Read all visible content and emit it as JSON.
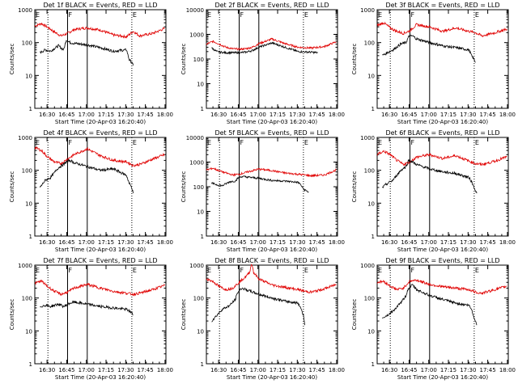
{
  "chart_data": [
    {
      "type": "line",
      "title": "Det 1f BLACK = Events, RED = LLD",
      "xlabel": "Start Time (20-Apr-03 16:20:40)",
      "ylabel": "Counts/sec",
      "yscale": "log",
      "ylim": [
        1,
        1000
      ],
      "yticks": [
        "1",
        "10",
        "100",
        "1000"
      ],
      "xticks": [
        "16:30",
        "16:45",
        "17:00",
        "17:15",
        "17:30",
        "17:45",
        "18:00"
      ],
      "xlim_min": [
        0,
        100
      ],
      "dotted_min": [
        10,
        74
      ],
      "solid_min": [
        25,
        40
      ],
      "markers": [
        {
          "label": "E",
          "min": 0
        },
        {
          "label": "F",
          "min": 25
        },
        {
          "label": "E",
          "min": 74
        }
      ],
      "series": [
        {
          "color": "#e00000",
          "x": [
            0,
            5,
            10,
            15,
            20,
            25,
            30,
            40,
            50,
            60,
            70,
            75,
            80,
            90,
            99
          ],
          "y": [
            320,
            380,
            290,
            210,
            160,
            190,
            250,
            280,
            240,
            170,
            150,
            220,
            160,
            190,
            270
          ]
        },
        {
          "color": "#000000",
          "x": [
            4,
            8,
            12,
            18,
            22,
            24,
            27,
            30,
            40,
            50,
            60,
            70,
            72,
            74,
            75
          ],
          "y": [
            50,
            60,
            55,
            80,
            60,
            120,
            100,
            95,
            85,
            70,
            55,
            60,
            30,
            25,
            20
          ]
        }
      ]
    },
    {
      "type": "line",
      "title": "Det 2f BLACK = Events, RED = LLD",
      "xlabel": "Start Time (20-Apr-03 16:20:40)",
      "ylabel": "Counts/sec",
      "yscale": "log",
      "ylim": [
        1,
        10000
      ],
      "yticks": [
        "1",
        "10",
        "100",
        "1000",
        "10000"
      ],
      "xticks": [
        "16:30",
        "16:45",
        "17:00",
        "17:15",
        "17:30",
        "17:45",
        "18:00"
      ],
      "xlim_min": [
        0,
        100
      ],
      "dotted_min": [
        10,
        74
      ],
      "solid_min": [
        25,
        40
      ],
      "markers": [
        {
          "label": "E",
          "min": 0
        },
        {
          "label": "F",
          "min": 25
        },
        {
          "label": "E",
          "min": 74
        }
      ],
      "series": [
        {
          "color": "#e00000",
          "x": [
            0,
            5,
            10,
            15,
            20,
            25,
            30,
            35,
            40,
            50,
            60,
            70,
            80,
            90,
            99
          ],
          "y": [
            400,
            520,
            400,
            300,
            260,
            250,
            260,
            300,
            420,
            650,
            420,
            300,
            280,
            320,
            500
          ]
        },
        {
          "color": "#000000",
          "x": [
            4,
            8,
            10,
            15,
            20,
            25,
            30,
            35,
            40,
            50,
            60,
            70,
            80,
            85
          ],
          "y": [
            280,
            200,
            190,
            180,
            180,
            180,
            190,
            220,
            300,
            450,
            300,
            200,
            190,
            180
          ]
        }
      ]
    },
    {
      "type": "line",
      "title": "Det 3f BLACK = Events, RED = LLD",
      "xlabel": "Start Time (20-Apr-03 16:20:40)",
      "ylabel": "Counts/sec",
      "yscale": "log",
      "ylim": [
        1,
        1000
      ],
      "yticks": [
        "1",
        "10",
        "100",
        "1000"
      ],
      "xticks": [
        "16:30",
        "16:45",
        "17:00",
        "17:15",
        "17:30",
        "17:45",
        "18:00"
      ],
      "xlim_min": [
        0,
        100
      ],
      "dotted_min": [
        10,
        74
      ],
      "solid_min": [
        25,
        40
      ],
      "markers": [
        {
          "label": "E",
          "min": 0
        },
        {
          "label": "F",
          "min": 25
        },
        {
          "label": "E",
          "min": 74
        }
      ],
      "series": [
        {
          "color": "#e00000",
          "x": [
            0,
            5,
            10,
            15,
            20,
            25,
            30,
            40,
            50,
            60,
            70,
            75,
            80,
            90,
            99
          ],
          "y": [
            330,
            400,
            280,
            220,
            190,
            230,
            350,
            300,
            220,
            280,
            220,
            200,
            160,
            200,
            260
          ]
        },
        {
          "color": "#000000",
          "x": [
            4,
            8,
            12,
            18,
            22,
            24,
            27,
            30,
            40,
            50,
            60,
            70,
            72,
            74,
            75
          ],
          "y": [
            40,
            50,
            60,
            90,
            100,
            150,
            160,
            130,
            100,
            80,
            70,
            60,
            40,
            30,
            25
          ]
        }
      ]
    },
    {
      "type": "line",
      "title": "Det 4f BLACK = Events, RED = LLD",
      "xlabel": "Start Time (20-Apr-03 16:20:40)",
      "ylabel": "Counts/sec",
      "yscale": "log",
      "ylim": [
        1,
        1000
      ],
      "yticks": [
        "1",
        "10",
        "100",
        "1000"
      ],
      "xticks": [
        "16:30",
        "16:45",
        "17:00",
        "17:15",
        "17:30",
        "17:45",
        "18:00"
      ],
      "xlim_min": [
        0,
        100
      ],
      "dotted_min": [
        10,
        74
      ],
      "solid_min": [
        25,
        40
      ],
      "markers": [
        {
          "label": "E",
          "min": 0
        },
        {
          "label": "F",
          "min": 25
        },
        {
          "label": "E",
          "min": 74
        }
      ],
      "series": [
        {
          "color": "#e00000",
          "x": [
            0,
            5,
            10,
            15,
            20,
            25,
            30,
            40,
            50,
            60,
            70,
            75,
            80,
            90,
            99
          ],
          "y": [
            500,
            400,
            250,
            180,
            160,
            220,
            300,
            450,
            280,
            200,
            180,
            140,
            150,
            220,
            300
          ]
        },
        {
          "color": "#000000",
          "x": [
            4,
            8,
            12,
            18,
            22,
            24,
            27,
            30,
            40,
            50,
            60,
            70,
            72,
            74,
            75
          ],
          "y": [
            30,
            50,
            60,
            120,
            150,
            180,
            200,
            170,
            130,
            100,
            110,
            70,
            40,
            30,
            20
          ]
        }
      ]
    },
    {
      "type": "line",
      "title": "Det 5f BLACK = Events, RED = LLD",
      "xlabel": "Start Time (20-Apr-03 16:20:40)",
      "ylabel": "Counts/sec",
      "yscale": "log",
      "ylim": [
        1,
        10000
      ],
      "yticks": [
        "1",
        "10",
        "100",
        "1000",
        "10000"
      ],
      "xticks": [
        "16:30",
        "16:45",
        "17:00",
        "17:15",
        "17:30",
        "17:45",
        "18:00"
      ],
      "xlim_min": [
        0,
        100
      ],
      "dotted_min": [
        10,
        74
      ],
      "solid_min": [
        25,
        40
      ],
      "markers": [
        {
          "label": "E",
          "min": 0
        },
        {
          "label": "F",
          "min": 25
        },
        {
          "label": "E",
          "min": 74
        }
      ],
      "series": [
        {
          "color": "#e00000",
          "x": [
            0,
            5,
            10,
            15,
            20,
            25,
            30,
            40,
            50,
            60,
            70,
            75,
            80,
            90,
            99
          ],
          "y": [
            480,
            560,
            440,
            360,
            300,
            320,
            380,
            520,
            450,
            360,
            320,
            300,
            280,
            300,
            480
          ]
        },
        {
          "color": "#000000",
          "x": [
            4,
            8,
            12,
            18,
            22,
            24,
            27,
            30,
            40,
            50,
            60,
            70,
            72,
            74,
            78
          ],
          "y": [
            140,
            120,
            110,
            160,
            170,
            220,
            260,
            250,
            220,
            180,
            170,
            150,
            120,
            80,
            60
          ]
        }
      ]
    },
    {
      "type": "line",
      "title": "Det 6f BLACK = Events, RED = LLD",
      "xlabel": "Start Time (20-Apr-03 16:20:40)",
      "ylabel": "Counts/sec",
      "yscale": "log",
      "ylim": [
        1,
        1000
      ],
      "yticks": [
        "1",
        "10",
        "100",
        "1000"
      ],
      "xticks": [
        "16:30",
        "16:45",
        "17:00",
        "17:15",
        "17:30",
        "17:45",
        "18:00"
      ],
      "xlim_min": [
        0,
        100
      ],
      "dotted_min": [
        10,
        74
      ],
      "solid_min": [
        25,
        40
      ],
      "markers": [
        {
          "label": "E",
          "min": 0
        },
        {
          "label": "F",
          "min": 25
        },
        {
          "label": "E",
          "min": 74
        }
      ],
      "series": [
        {
          "color": "#e00000",
          "x": [
            0,
            5,
            10,
            15,
            20,
            25,
            30,
            40,
            50,
            60,
            70,
            75,
            80,
            90,
            99
          ],
          "y": [
            300,
            380,
            300,
            200,
            150,
            180,
            250,
            300,
            230,
            280,
            190,
            160,
            150,
            190,
            260
          ]
        },
        {
          "color": "#000000",
          "x": [
            4,
            8,
            12,
            18,
            22,
            24,
            27,
            30,
            40,
            50,
            60,
            70,
            72,
            74,
            76
          ],
          "y": [
            30,
            40,
            50,
            100,
            130,
            200,
            180,
            150,
            110,
            90,
            80,
            60,
            45,
            30,
            20
          ]
        }
      ]
    },
    {
      "type": "line",
      "title": "Det 7f BLACK = Events, RED = LLD",
      "xlabel": "Start Time (20-Apr-03 16:20:40)",
      "ylabel": "Counts/sec",
      "yscale": "log",
      "ylim": [
        1,
        1000
      ],
      "yticks": [
        "1",
        "10",
        "100",
        "1000"
      ],
      "xticks": [
        "16:30",
        "16:45",
        "17:00",
        "17:15",
        "17:30",
        "17:45",
        "18:00"
      ],
      "xlim_min": [
        0,
        100
      ],
      "dotted_min": [
        10,
        74
      ],
      "solid_min": [
        25,
        40
      ],
      "markers": [
        {
          "label": "E",
          "min": 0
        },
        {
          "label": "F",
          "min": 25
        },
        {
          "label": "E",
          "min": 74
        }
      ],
      "series": [
        {
          "color": "#e00000",
          "x": [
            0,
            5,
            10,
            15,
            20,
            25,
            30,
            40,
            50,
            60,
            70,
            75,
            80,
            90,
            99
          ],
          "y": [
            280,
            330,
            220,
            160,
            130,
            150,
            200,
            260,
            200,
            160,
            140,
            130,
            140,
            180,
            240
          ]
        },
        {
          "color": "#000000",
          "x": [
            4,
            8,
            12,
            18,
            22,
            24,
            27,
            30,
            40,
            50,
            60,
            70,
            72,
            74,
            75
          ],
          "y": [
            55,
            60,
            55,
            65,
            55,
            60,
            70,
            75,
            65,
            55,
            50,
            45,
            40,
            35,
            30
          ]
        }
      ]
    },
    {
      "type": "line",
      "title": "Det 8f BLACK = Events, RED = LLD",
      "xlabel": "Start Time (20-Apr-03 16:20:40)",
      "ylabel": "Counts/sec",
      "yscale": "log",
      "ylim": [
        1,
        1000
      ],
      "yticks": [
        "1",
        "10",
        "100",
        "1000"
      ],
      "xticks": [
        "16:30",
        "16:45",
        "17:00",
        "17:15",
        "17:30",
        "17:45",
        "18:00"
      ],
      "xlim_min": [
        0,
        100
      ],
      "dotted_min": [
        10,
        74
      ],
      "solid_min": [
        25,
        40
      ],
      "markers": [
        {
          "label": "E",
          "min": 0
        },
        {
          "label": "F",
          "min": 25
        },
        {
          "label": "E",
          "min": 74
        }
      ],
      "series": [
        {
          "color": "#e00000",
          "x": [
            0,
            5,
            10,
            15,
            20,
            25,
            30,
            33,
            34,
            35,
            36,
            40,
            50,
            60,
            70,
            75,
            80,
            90,
            99
          ],
          "y": [
            380,
            320,
            220,
            180,
            200,
            300,
            450,
            600,
            1000,
            1000,
            600,
            380,
            250,
            210,
            180,
            160,
            150,
            190,
            260
          ]
        },
        {
          "color": "#000000",
          "x": [
            4,
            8,
            12,
            18,
            22,
            24,
            27,
            30,
            40,
            50,
            60,
            70,
            72,
            74,
            75
          ],
          "y": [
            20,
            30,
            45,
            60,
            90,
            150,
            200,
            180,
            130,
            100,
            80,
            70,
            50,
            30,
            15
          ]
        }
      ]
    },
    {
      "type": "line",
      "title": "Det 9f BLACK = Events, RED = LLD",
      "xlabel": "Start Time (20-Apr-03 16:20:40)",
      "ylabel": "Counts/sec",
      "yscale": "log",
      "ylim": [
        1,
        1000
      ],
      "yticks": [
        "1",
        "10",
        "100",
        "1000"
      ],
      "xticks": [
        "16:30",
        "16:45",
        "17:00",
        "17:15",
        "17:30",
        "17:45",
        "18:00"
      ],
      "xlim_min": [
        0,
        100
      ],
      "dotted_min": [
        10,
        74
      ],
      "solid_min": [
        25,
        40
      ],
      "markers": [
        {
          "label": "E",
          "min": 0
        },
        {
          "label": "F",
          "min": 25
        },
        {
          "label": "E",
          "min": 74
        }
      ],
      "series": [
        {
          "color": "#e00000",
          "x": [
            0,
            5,
            10,
            15,
            20,
            25,
            30,
            40,
            50,
            60,
            70,
            75,
            80,
            90,
            99
          ],
          "y": [
            300,
            320,
            230,
            180,
            200,
            330,
            350,
            260,
            220,
            200,
            180,
            150,
            140,
            180,
            230
          ]
        },
        {
          "color": "#000000",
          "x": [
            4,
            8,
            12,
            18,
            22,
            24,
            27,
            30,
            40,
            50,
            60,
            70,
            72,
            74,
            76
          ],
          "y": [
            25,
            30,
            40,
            70,
            120,
            200,
            250,
            180,
            120,
            90,
            70,
            60,
            45,
            25,
            15
          ]
        }
      ]
    }
  ]
}
